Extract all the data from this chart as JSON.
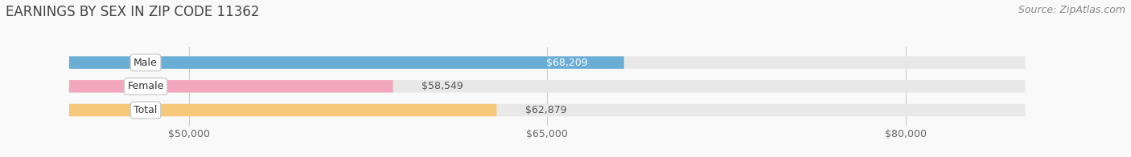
{
  "title": "EARNINGS BY SEX IN ZIP CODE 11362",
  "source": "Source: ZipAtlas.com",
  "categories": [
    "Male",
    "Female",
    "Total"
  ],
  "values": [
    68209,
    58549,
    62879
  ],
  "bar_colors": [
    "#6aaed6",
    "#f2a7bf",
    "#f5c87a"
  ],
  "value_labels": [
    "$68,209",
    "$58,549",
    "$62,879"
  ],
  "xmin": 45000,
  "xmax": 85000,
  "xticks": [
    50000,
    65000,
    80000
  ],
  "xtick_labels": [
    "$50,000",
    "$65,000",
    "$80,000"
  ],
  "background_color": "#f9f9f9",
  "bar_bg_color": "#e8e8e8",
  "title_fontsize": 12,
  "source_fontsize": 9,
  "value_label_color_male": "#ffffff",
  "value_label_color_other": "#666666"
}
